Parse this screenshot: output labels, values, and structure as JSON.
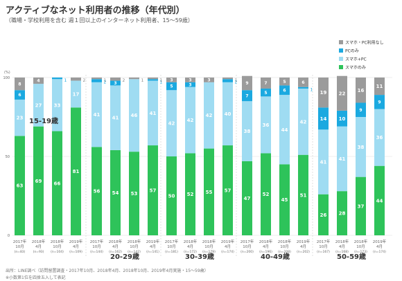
{
  "header": {
    "title": "アクティブなネット利用者の推移（年代別）",
    "subtitle": "（職場・学校利用を含む 週１回以上のインターネット利用者、15〜59歳）"
  },
  "chart_data": {
    "type": "bar",
    "stacked": true,
    "y_unit": "(%)",
    "ylim": [
      0,
      100
    ],
    "yticks": [
      0,
      50,
      100
    ],
    "legend_position": "top-right",
    "groups": [
      {
        "name": "15-19歳",
        "bars": [
          {
            "label": [
              "2017年",
              "10月",
              "(n=83)"
            ],
            "values": {
              "smartphone_only": 63,
              "smartphone_pc": 23,
              "pc_only": 6,
              "none": 8
            }
          },
          {
            "label": [
              "2018年",
              "4月",
              "(n=93)"
            ],
            "values": {
              "smartphone_only": 69,
              "smartphone_pc": 27,
              "pc_only": 0,
              "none": 4
            }
          },
          {
            "label": [
              "2018年",
              "10月",
              "(n=104)"
            ],
            "values": {
              "smartphone_only": 66,
              "smartphone_pc": 33,
              "pc_only": 1,
              "none": 0
            }
          },
          {
            "label": [
              "2019年",
              "4月",
              "(n=109)"
            ],
            "values": {
              "smartphone_only": 81,
              "smartphone_pc": 17,
              "pc_only": 0,
              "none": 2
            }
          }
        ]
      },
      {
        "name": "20-29歳",
        "bars": [
          {
            "label": [
              "2017年",
              "10月",
              "(n=144)"
            ],
            "values": {
              "smartphone_only": 56,
              "smartphone_pc": 41,
              "pc_only": 2,
              "none": 1
            }
          },
          {
            "label": [
              "2018年",
              "4月",
              "(n=162)"
            ],
            "values": {
              "smartphone_only": 54,
              "smartphone_pc": 41,
              "pc_only": 3,
              "none": 2
            }
          },
          {
            "label": [
              "2018年",
              "10月",
              "(n=142)"
            ],
            "values": {
              "smartphone_only": 53,
              "smartphone_pc": 46,
              "pc_only": 0,
              "none": 1
            }
          },
          {
            "label": [
              "2019年",
              "4月",
              "(n=141)"
            ],
            "values": {
              "smartphone_only": 57,
              "smartphone_pc": 41,
              "pc_only": 1,
              "none": 1
            }
          }
        ]
      },
      {
        "name": "30-39歳",
        "bars": [
          {
            "label": [
              "2017年",
              "10月",
              "(n=181)"
            ],
            "values": {
              "smartphone_only": 50,
              "smartphone_pc": 42,
              "pc_only": 5,
              "none": 3
            }
          },
          {
            "label": [
              "2018年",
              "4月",
              "(n=172)"
            ],
            "values": {
              "smartphone_only": 52,
              "smartphone_pc": 42,
              "pc_only": 3,
              "none": 3
            }
          },
          {
            "label": [
              "2018年",
              "10月",
              "(n=179)"
            ],
            "values": {
              "smartphone_only": 55,
              "smartphone_pc": 42,
              "pc_only": 0,
              "none": 3
            }
          },
          {
            "label": [
              "2019年",
              "4月",
              "(n=174)"
            ],
            "values": {
              "smartphone_only": 57,
              "smartphone_pc": 40,
              "pc_only": 2,
              "none": 1
            }
          }
        ]
      },
      {
        "name": "40-49歳",
        "bars": [
          {
            "label": [
              "2017年",
              "10月",
              "(n=200)"
            ],
            "values": {
              "smartphone_only": 47,
              "smartphone_pc": 38,
              "pc_only": 7,
              "none": 9
            }
          },
          {
            "label": [
              "2018年",
              "4月",
              "(n=196)"
            ],
            "values": {
              "smartphone_only": 52,
              "smartphone_pc": 36,
              "pc_only": 5,
              "none": 7
            }
          },
          {
            "label": [
              "2018年",
              "10月",
              "(n=208)"
            ],
            "values": {
              "smartphone_only": 45,
              "smartphone_pc": 44,
              "pc_only": 6,
              "none": 5
            }
          },
          {
            "label": [
              "2019年",
              "4月",
              "(n=202)"
            ],
            "values": {
              "smartphone_only": 51,
              "smartphone_pc": 42,
              "pc_only": 1,
              "none": 6
            }
          }
        ]
      },
      {
        "name": "50-59歳",
        "bars": [
          {
            "label": [
              "2017年",
              "10月",
              "(n=167)"
            ],
            "values": {
              "smartphone_only": 26,
              "smartphone_pc": 41,
              "pc_only": 14,
              "none": 19
            }
          },
          {
            "label": [
              "2018年",
              "4月",
              "(n=168)"
            ],
            "values": {
              "smartphone_only": 28,
              "smartphone_pc": 41,
              "pc_only": 10,
              "none": 22
            }
          },
          {
            "label": [
              "2018年",
              "10月",
              "(n=173)"
            ],
            "values": {
              "smartphone_only": 37,
              "smartphone_pc": 38,
              "pc_only": 9,
              "none": 16
            }
          },
          {
            "label": [
              "2019年",
              "4月",
              "(n=174)"
            ],
            "values": {
              "smartphone_only": 44,
              "smartphone_pc": 36,
              "pc_only": 9,
              "none": 11
            }
          }
        ]
      }
    ],
    "series": [
      {
        "key": "smartphone_only",
        "name": "スマホのみ",
        "color": "#2ec35a"
      },
      {
        "key": "smartphone_pc",
        "name": "スマホ+PC",
        "color": "#9fdcf2"
      },
      {
        "key": "pc_only",
        "name": "PCのみ",
        "color": "#1ba9e0"
      },
      {
        "key": "none",
        "name": "スマホ・PC利用なし",
        "color": "#9b9b9b"
      }
    ]
  },
  "footer": {
    "source": "出所：LINE調べ（訪問留置調査・2017年10月、2018年4月、2018年10月、2019年4月実施・15〜59歳）",
    "note": "※小数第1位を四捨五入して表記"
  }
}
